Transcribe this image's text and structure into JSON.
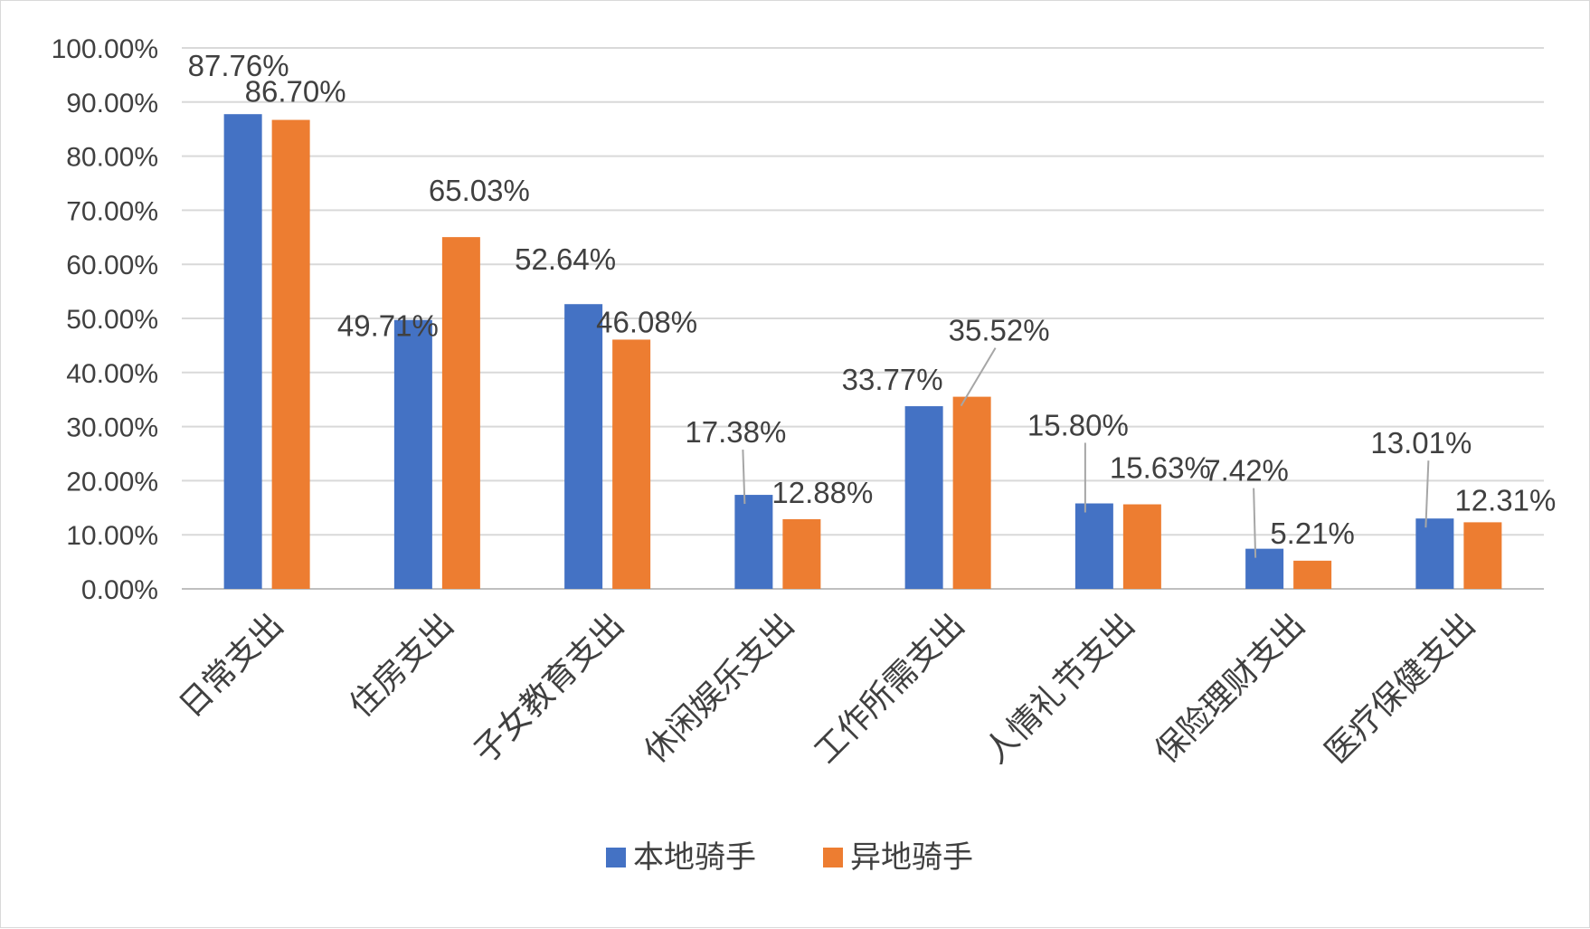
{
  "chart_data": {
    "type": "bar",
    "title": "",
    "xlabel": "",
    "ylabel": "",
    "ylim": [
      0,
      100
    ],
    "ytick_step": 10,
    "ytick_labels": [
      "0.00%",
      "10.00%",
      "20.00%",
      "30.00%",
      "40.00%",
      "50.00%",
      "60.00%",
      "70.00%",
      "80.00%",
      "90.00%",
      "100.00%"
    ],
    "grid": true,
    "legend_position": "bottom",
    "categories": [
      "日常支出",
      "住房支出",
      "子女教育支出",
      "休闲娱乐支出",
      "工作所需支出",
      "人情礼节支出",
      "保险理财支出",
      "医疗保健支出"
    ],
    "series": [
      {
        "name": "本地骑手",
        "color": "#4472C4",
        "values": [
          87.76,
          49.71,
          52.64,
          17.38,
          33.77,
          15.8,
          7.42,
          13.01
        ],
        "labels": [
          "87.76%",
          "49.71%",
          "52.64%",
          "17.38%",
          "33.77%",
          "15.80%",
          "7.42%",
          "13.01%"
        ]
      },
      {
        "name": "异地骑手",
        "color": "#ED7D31",
        "values": [
          86.7,
          65.03,
          46.08,
          12.88,
          35.52,
          15.63,
          5.21,
          12.31
        ],
        "labels": [
          "86.70%",
          "65.03%",
          "46.08%",
          "12.88%",
          "35.52%",
          "15.63%",
          "5.21%",
          "12.31%"
        ]
      }
    ]
  }
}
